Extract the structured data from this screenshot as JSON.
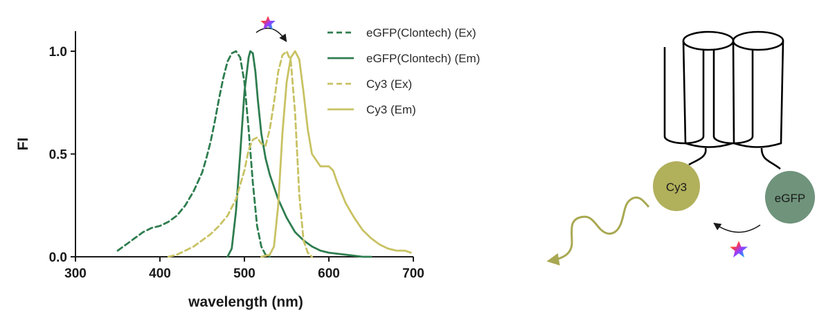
{
  "chart_data": {
    "type": "line",
    "xlabel": "wavelength (nm)",
    "ylabel": "FI",
    "xlim": [
      300,
      700
    ],
    "ylim": [
      0,
      1.1
    ],
    "xticks": [
      300,
      400,
      500,
      600,
      700
    ],
    "yticks": [
      0.0,
      0.5,
      1.0
    ],
    "xtick_labels": [
      "300",
      "400",
      "500",
      "600",
      "700"
    ],
    "ytick_labels": [
      "0.0",
      "0.5",
      "1.0"
    ],
    "grid": false,
    "legend_position": "top-right",
    "series": [
      {
        "name": "eGFP(Clontech) (Ex)",
        "color": "#2e7d4f",
        "dash": "dashed",
        "x": [
          350,
          360,
          370,
          380,
          390,
          400,
          410,
          420,
          430,
          440,
          450,
          455,
          460,
          465,
          470,
          475,
          480,
          485,
          490,
          495,
          500,
          505,
          510,
          515,
          520,
          525,
          530
        ],
        "y": [
          0.03,
          0.06,
          0.09,
          0.12,
          0.14,
          0.15,
          0.17,
          0.2,
          0.25,
          0.32,
          0.41,
          0.48,
          0.56,
          0.66,
          0.77,
          0.87,
          0.95,
          0.99,
          1.0,
          0.97,
          0.85,
          0.62,
          0.36,
          0.15,
          0.05,
          0.01,
          0.0
        ]
      },
      {
        "name": "eGFP(Clontech) (Em)",
        "color": "#2e7d4f",
        "dash": "solid",
        "x": [
          480,
          485,
          490,
          495,
          500,
          505,
          507,
          510,
          513,
          516,
          520,
          525,
          530,
          540,
          550,
          560,
          570,
          580,
          590,
          600,
          620,
          640,
          650
        ],
        "y": [
          0.0,
          0.04,
          0.22,
          0.5,
          0.8,
          0.97,
          1.0,
          0.99,
          0.9,
          0.76,
          0.6,
          0.48,
          0.4,
          0.28,
          0.19,
          0.12,
          0.08,
          0.05,
          0.03,
          0.02,
          0.01,
          0.0,
          0.0
        ]
      },
      {
        "name": "Cy3 (Ex)",
        "color": "#c8c263",
        "dash": "dashed",
        "x": [
          410,
          420,
          430,
          440,
          450,
          460,
          470,
          480,
          490,
          500,
          505,
          510,
          515,
          520,
          525,
          530,
          535,
          540,
          545,
          550,
          555,
          560,
          565,
          570,
          575,
          580
        ],
        "y": [
          0.0,
          0.01,
          0.03,
          0.05,
          0.08,
          0.11,
          0.15,
          0.2,
          0.28,
          0.42,
          0.52,
          0.57,
          0.58,
          0.55,
          0.54,
          0.62,
          0.75,
          0.9,
          0.98,
          1.0,
          0.95,
          0.7,
          0.3,
          0.08,
          0.02,
          0.0
        ]
      },
      {
        "name": "Cy3 (Em)",
        "color": "#c8c263",
        "dash": "solid",
        "x": [
          520,
          530,
          535,
          540,
          545,
          550,
          555,
          560,
          565,
          570,
          575,
          580,
          590,
          600,
          605,
          610,
          620,
          630,
          640,
          650,
          660,
          670,
          680,
          690,
          697
        ],
        "y": [
          0.0,
          0.01,
          0.05,
          0.25,
          0.6,
          0.85,
          0.97,
          1.0,
          0.96,
          0.8,
          0.62,
          0.5,
          0.44,
          0.44,
          0.42,
          0.36,
          0.26,
          0.19,
          0.13,
          0.09,
          0.06,
          0.04,
          0.03,
          0.03,
          0.02
        ]
      }
    ]
  },
  "diagram": {
    "donor_label": "eGFP",
    "acceptor_label": "Cy3",
    "donor_color": "#6f937b",
    "acceptor_color": "#b1b05b",
    "emission_wave_color": "#a9a852",
    "star_icon": "rainbow-star-icon"
  }
}
